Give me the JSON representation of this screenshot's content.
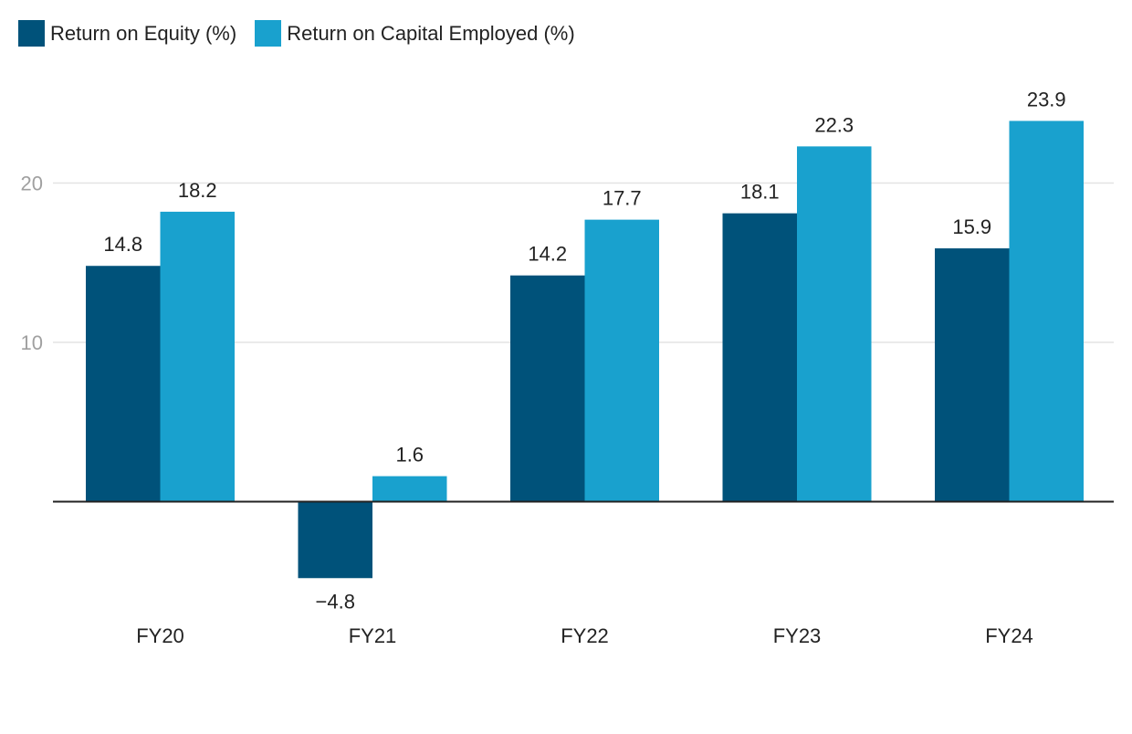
{
  "chart_data": {
    "type": "bar",
    "title": "",
    "xlabel": "",
    "ylabel": "",
    "categories": [
      "FY20",
      "FY21",
      "FY22",
      "FY23",
      "FY24"
    ],
    "series": [
      {
        "name": "Return on Equity (%)",
        "values": [
          14.8,
          -4.8,
          14.2,
          18.1,
          15.9
        ],
        "color": "#00527A"
      },
      {
        "name": "Return on Capital Employed (%)",
        "values": [
          18.2,
          1.6,
          17.7,
          22.3,
          23.9
        ],
        "color": "#19A1CE"
      }
    ],
    "value_labels": [
      [
        "14.8",
        "−4.8",
        "14.2",
        "18.1",
        "15.9"
      ],
      [
        "18.2",
        "1.6",
        "17.7",
        "22.3",
        "23.9"
      ]
    ],
    "y_ticks": [
      10,
      20
    ],
    "y_tick_labels": [
      "10",
      "20"
    ],
    "ylim": [
      -8,
      26
    ],
    "grid": true,
    "legend_position": "top-left",
    "colors": {
      "grid": "#E3E3E3",
      "zero_line": "#222222",
      "tick_label": "#A0A0A0",
      "text": "#222222"
    }
  }
}
